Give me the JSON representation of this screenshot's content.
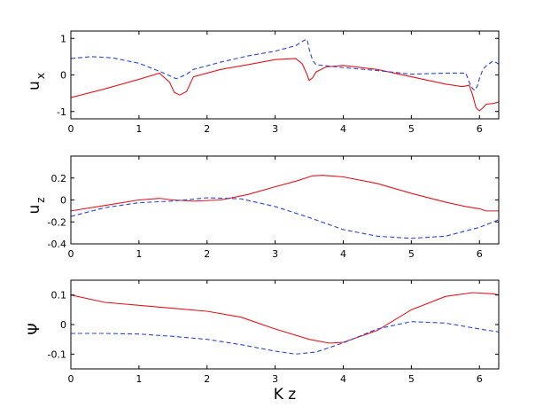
{
  "chart_data": [
    {
      "type": "line",
      "ylabel": "u",
      "ylabel_sub": "x",
      "xlabel": "",
      "xlim": [
        0,
        6.2832
      ],
      "ylim": [
        -1.2,
        1.2
      ],
      "xticks": [
        "0",
        "1",
        "2",
        "3",
        "4",
        "5",
        "6"
      ],
      "yticks": [
        "-1",
        "0",
        "1"
      ],
      "ytick_values": [
        -1,
        0,
        1
      ],
      "series": [
        {
          "color": "#e8141c",
          "style": "solid",
          "x": [
            0,
            0.5,
            1.0,
            1.3,
            1.45,
            1.52,
            1.6,
            1.7,
            1.8,
            2.2,
            2.6,
            3.0,
            3.3,
            3.4,
            3.47,
            3.5,
            3.55,
            3.6,
            3.75,
            4.0,
            4.5,
            5.0,
            5.5,
            5.75,
            5.85,
            5.9,
            5.95,
            6.0,
            6.05,
            6.1,
            6.2,
            6.2832
          ],
          "y": [
            -0.62,
            -0.38,
            -0.12,
            0.05,
            -0.2,
            -0.48,
            -0.55,
            -0.45,
            -0.05,
            0.15,
            0.28,
            0.42,
            0.45,
            0.3,
            0.0,
            -0.15,
            -0.08,
            0.08,
            0.22,
            0.26,
            0.15,
            -0.05,
            -0.25,
            -0.32,
            -0.28,
            -0.55,
            -0.9,
            -0.98,
            -0.9,
            -0.8,
            -0.78,
            -0.74
          ]
        },
        {
          "color": "#2a45d8",
          "style": "dashed",
          "x": [
            0,
            0.3,
            0.6,
            1.0,
            1.3,
            1.45,
            1.5,
            1.55,
            1.62,
            1.7,
            1.8,
            2.2,
            2.6,
            3.0,
            3.3,
            3.43,
            3.47,
            3.5,
            3.55,
            3.6,
            4.0,
            4.5,
            5.0,
            5.5,
            5.8,
            5.85,
            5.9,
            5.93,
            5.97,
            6.0,
            6.05,
            6.1,
            6.2,
            6.2832
          ],
          "y": [
            0.45,
            0.5,
            0.47,
            0.32,
            0.1,
            -0.02,
            -0.07,
            -0.1,
            -0.05,
            0.02,
            0.15,
            0.35,
            0.52,
            0.65,
            0.8,
            0.95,
            0.97,
            0.7,
            0.4,
            0.28,
            0.2,
            0.12,
            0.02,
            0.05,
            0.05,
            -0.2,
            -0.38,
            -0.42,
            -0.3,
            -0.1,
            0.15,
            0.25,
            0.38,
            0.3
          ]
        }
      ]
    },
    {
      "type": "line",
      "ylabel": "u",
      "ylabel_sub": "z",
      "xlabel": "",
      "xlim": [
        0,
        6.2832
      ],
      "ylim": [
        -0.4,
        0.4
      ],
      "xticks": [
        "0",
        "1",
        "2",
        "3",
        "4",
        "5",
        "6"
      ],
      "yticks": [
        "-0.4",
        "-0.2",
        "0",
        "0.2"
      ],
      "ytick_values": [
        -0.4,
        -0.2,
        0,
        0.2
      ],
      "series": [
        {
          "color": "#e8141c",
          "style": "solid",
          "x": [
            0,
            0.5,
            1.0,
            1.3,
            1.5,
            1.8,
            2.2,
            2.6,
            3.0,
            3.3,
            3.45,
            3.55,
            3.7,
            4.0,
            4.5,
            5.0,
            5.5,
            5.8,
            6.0,
            6.1,
            6.2832
          ],
          "y": [
            -0.1,
            -0.05,
            0.0,
            0.015,
            0.0,
            -0.01,
            0.0,
            0.05,
            0.12,
            0.17,
            0.2,
            0.22,
            0.225,
            0.21,
            0.15,
            0.06,
            -0.02,
            -0.06,
            -0.08,
            -0.1,
            -0.1
          ]
        },
        {
          "color": "#2a45d8",
          "style": "dashed",
          "x": [
            0,
            0.5,
            1.0,
            1.5,
            2.0,
            2.5,
            3.0,
            3.5,
            4.0,
            4.5,
            5.0,
            5.5,
            6.0,
            6.2832
          ],
          "y": [
            -0.15,
            -0.07,
            -0.025,
            -0.01,
            0.02,
            0.01,
            -0.06,
            -0.16,
            -0.27,
            -0.33,
            -0.35,
            -0.33,
            -0.25,
            -0.18
          ]
        }
      ]
    },
    {
      "type": "line",
      "ylabel": "Ψ",
      "ylabel_sub": "",
      "xlabel": "K z",
      "xlim": [
        0,
        6.2832
      ],
      "ylim": [
        -0.15,
        0.15
      ],
      "xticks": [
        "0",
        "1",
        "2",
        "3",
        "4",
        "5",
        "6"
      ],
      "yticks": [
        "-0.1",
        "0",
        "0.1"
      ],
      "ytick_values": [
        -0.1,
        0,
        0.1
      ],
      "series": [
        {
          "color": "#e8141c",
          "style": "solid",
          "x": [
            0,
            0.5,
            1.0,
            1.5,
            2.0,
            2.5,
            3.0,
            3.5,
            3.8,
            4.0,
            4.5,
            5.0,
            5.5,
            5.9,
            6.2,
            6.2832
          ],
          "y": [
            0.1,
            0.075,
            0.065,
            0.055,
            0.045,
            0.025,
            -0.015,
            -0.05,
            -0.063,
            -0.06,
            -0.02,
            0.05,
            0.095,
            0.108,
            0.104,
            0.1
          ]
        },
        {
          "color": "#2a45d8",
          "style": "dashed",
          "x": [
            0,
            0.5,
            1.0,
            1.5,
            2.0,
            2.5,
            3.0,
            3.3,
            3.6,
            4.0,
            4.5,
            5.0,
            5.5,
            6.0,
            6.2832
          ],
          "y": [
            -0.03,
            -0.03,
            -0.032,
            -0.04,
            -0.05,
            -0.068,
            -0.09,
            -0.1,
            -0.093,
            -0.062,
            -0.015,
            0.01,
            0.005,
            -0.015,
            -0.025
          ]
        }
      ]
    }
  ]
}
